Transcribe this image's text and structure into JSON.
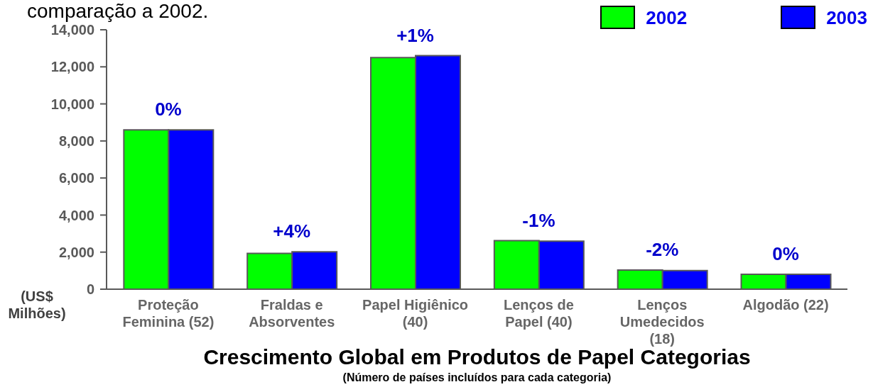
{
  "chart_data": {
    "type": "bar",
    "title": "Crescimento Global em Produtos de Papel Categorias",
    "subtitle": "(Número de países incluídos para cada categoria)",
    "ylabel": "(US$ Milhões)",
    "categories": [
      "Proteção Feminina (52)",
      "Fraldas e Absorventes",
      "Papel Higiênico (40)",
      "Lenços de Papel (40)",
      "Lenços Umedecidos (18)",
      "Algodão (22)"
    ],
    "series": [
      {
        "name": "2002",
        "color": "#00ff00",
        "values": [
          8600,
          1930,
          12500,
          2620,
          1030,
          800
        ]
      },
      {
        "name": "2003",
        "color": "#0000ff",
        "values": [
          8600,
          2020,
          12600,
          2590,
          1000,
          800
        ]
      }
    ],
    "ylim": [
      0,
      14000
    ],
    "yticks": [
      0,
      {
        "value": 2000,
        "label": "2,000"
      },
      {
        "value": 4000,
        "label": "4,000"
      },
      {
        "value": 6000,
        "label": "6,000"
      },
      {
        "value": 8000,
        "label": "8,000"
      },
      {
        "value": 10000,
        "label": "10,000"
      },
      {
        "value": 12000,
        "label": "12,000"
      },
      {
        "value": 14000,
        "label": "14,000"
      }
    ],
    "legend": "top right",
    "annotations": [
      "comparação a 2002.",
      "0%",
      "+4%",
      "+1%",
      "-1%",
      "-2%",
      "0%"
    ]
  }
}
